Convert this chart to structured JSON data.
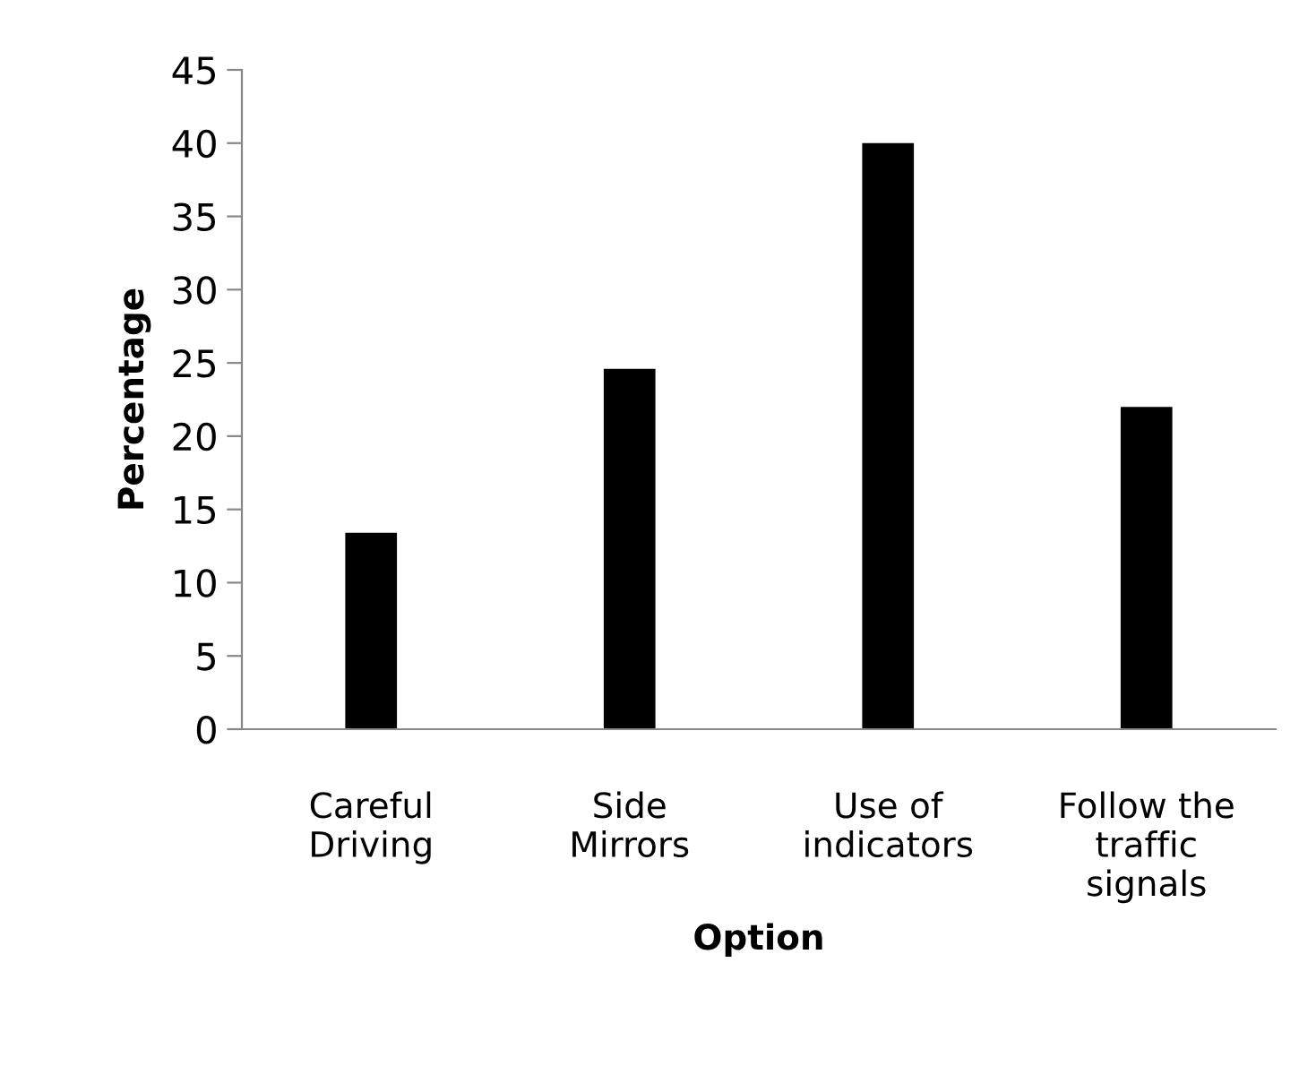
{
  "chart_data": {
    "type": "bar",
    "xlabel": "Option",
    "ylabel": "Percentage",
    "categories": [
      "Careful\nDriving",
      "Side\nMirrors",
      "Use of\nindicators",
      "Follow the\ntraffic\nsignals"
    ],
    "values": [
      13.4,
      24.6,
      40,
      22
    ],
    "color": "#000000",
    "ylim": [
      0,
      45
    ],
    "yticks": [
      0,
      5,
      10,
      15,
      20,
      25,
      30,
      35,
      40,
      45
    ],
    "grid": false,
    "legend": false
  }
}
